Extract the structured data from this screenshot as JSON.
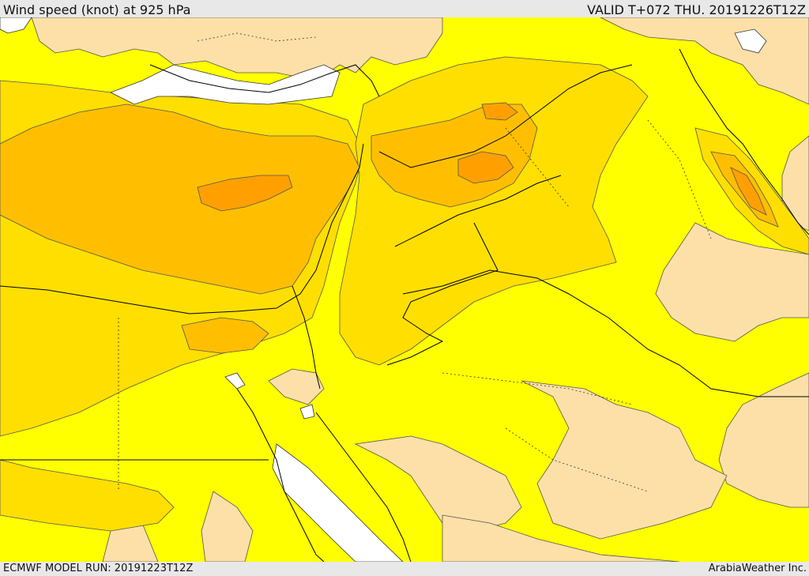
{
  "header": {
    "title": "Wind speed (knot) at 925 hPa",
    "valid": "VALID T+072 THU. 20191226T12Z"
  },
  "footer": {
    "model_run": "ECMWF MODEL RUN: 20191223T12Z",
    "credit": "ArabiaWeather Inc."
  },
  "colors": {
    "band_low": "#fde0a8",
    "band_1": "#ffff00",
    "band_2": "#ffdf00",
    "band_3": "#ffbf00",
    "band_4": "#ffa000",
    "water_gap": "#ffffff",
    "boundary": "#000000"
  }
}
